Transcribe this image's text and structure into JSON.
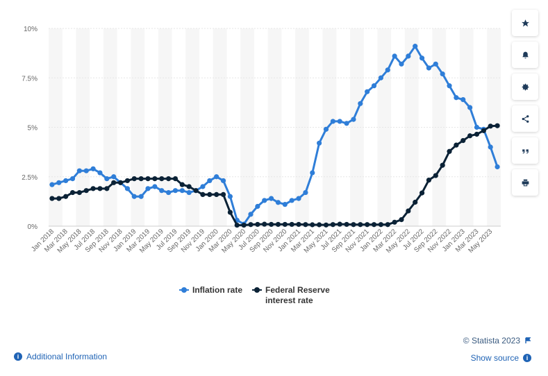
{
  "chart_data": {
    "type": "line",
    "categories": [
      "Jan 2018",
      "Feb 2018",
      "Mar 2018",
      "Apr 2018",
      "May 2018",
      "Jun 2018",
      "Jul 2018",
      "Aug 2018",
      "Sep 2018",
      "Oct 2018",
      "Nov 2018",
      "Dec 2018",
      "Jan 2019",
      "Feb 2019",
      "Mar 2019",
      "Apr 2019",
      "May 2019",
      "Jun 2019",
      "Jul 2019",
      "Aug 2019",
      "Sep 2019",
      "Oct 2019",
      "Nov 2019",
      "Dec 2019",
      "Jan 2020",
      "Feb 2020",
      "Mar 2020",
      "Apr 2020",
      "May 2020",
      "Jun 2020",
      "Jul 2020",
      "Aug 2020",
      "Sep 2020",
      "Oct 2020",
      "Nov 2020",
      "Dec 2020",
      "Jan 2021",
      "Feb 2021",
      "Mar 2021",
      "Apr 2021",
      "May 2021",
      "Jun 2021",
      "Jul 2021",
      "Aug 2021",
      "Sep 2021",
      "Oct 2021",
      "Nov 2021",
      "Dec 2021",
      "Jan 2022",
      "Feb 2022",
      "Mar 2022",
      "Apr 2022",
      "May 2022",
      "Jun 2022",
      "Jul 2022",
      "Aug 2022",
      "Sep 2022",
      "Oct 2022",
      "Nov 2022",
      "Dec 2022",
      "Jan 2023",
      "Feb 2023",
      "Mar 2023",
      "Apr 2023",
      "May 2023",
      "Jun 2023"
    ],
    "tick_labels": [
      "Jan 2018",
      "Mar 2018",
      "May 2018",
      "Jul 2018",
      "Sep 2018",
      "Nov 2018",
      "Jan 2019",
      "Mar 2019",
      "May 2019",
      "Jul 2019",
      "Sep 2019",
      "Nov 2019",
      "Jan 2020",
      "Mar 2020",
      "May 2020",
      "Jul 2020",
      "Sep 2020",
      "Nov 2020",
      "Jan 2021",
      "Mar 2021",
      "May 2021",
      "Jul 2021",
      "Sep 2021",
      "Nov 2021",
      "Jan 2022",
      "Mar 2022",
      "May 2022",
      "Jul 2022",
      "Sep 2022",
      "Nov 2022",
      "Jan 2023",
      "Mar 2023",
      "May 2023"
    ],
    "y_ticks": [
      {
        "value": 0,
        "label": "0%"
      },
      {
        "value": 2.5,
        "label": "2.5%"
      },
      {
        "value": 5,
        "label": "5%"
      },
      {
        "value": 7.5,
        "label": "7.5%"
      },
      {
        "value": 10,
        "label": "10%"
      }
    ],
    "ylim": [
      0,
      10
    ],
    "series": [
      {
        "name": "Inflation rate",
        "color": "#2f7ed8",
        "values": [
          2.1,
          2.2,
          2.3,
          2.4,
          2.8,
          2.8,
          2.9,
          2.7,
          2.4,
          2.5,
          2.2,
          1.9,
          1.5,
          1.5,
          1.9,
          2.0,
          1.8,
          1.7,
          1.8,
          1.8,
          1.7,
          1.8,
          2.0,
          2.3,
          2.5,
          2.3,
          1.5,
          0.3,
          0.1,
          0.6,
          1.0,
          1.3,
          1.4,
          1.2,
          1.1,
          1.3,
          1.4,
          1.7,
          2.7,
          4.2,
          4.9,
          5.3,
          5.3,
          5.2,
          5.4,
          6.2,
          6.8,
          7.1,
          7.5,
          7.9,
          8.6,
          8.2,
          8.6,
          9.1,
          8.5,
          8.0,
          8.2,
          7.7,
          7.1,
          6.5,
          6.4,
          6.0,
          5.0,
          4.9,
          4.0,
          3.0
        ]
      },
      {
        "name": "Federal Reserve interest rate",
        "color": "#0b2236",
        "values": [
          1.4,
          1.4,
          1.5,
          1.7,
          1.7,
          1.8,
          1.9,
          1.9,
          1.9,
          2.2,
          2.2,
          2.3,
          2.4,
          2.4,
          2.4,
          2.4,
          2.4,
          2.4,
          2.4,
          2.1,
          2.0,
          1.8,
          1.6,
          1.6,
          1.6,
          1.6,
          0.7,
          0.05,
          0.05,
          0.08,
          0.09,
          0.1,
          0.09,
          0.09,
          0.09,
          0.09,
          0.09,
          0.08,
          0.07,
          0.07,
          0.06,
          0.08,
          0.1,
          0.09,
          0.08,
          0.08,
          0.08,
          0.08,
          0.08,
          0.08,
          0.2,
          0.33,
          0.77,
          1.21,
          1.68,
          2.33,
          2.56,
          3.08,
          3.78,
          4.1,
          4.33,
          4.57,
          4.65,
          4.83,
          5.06,
          5.08
        ]
      }
    ],
    "legend": [
      "Inflation rate",
      "Federal Reserve interest rate"
    ],
    "legend_position": "bottom-center",
    "grid": true
  },
  "footer": {
    "credit": "© Statista 2023",
    "show_source": "Show source",
    "additional_info": "Additional Information"
  },
  "sidebar": {
    "icons": [
      "star-icon",
      "bell-icon",
      "gear-icon",
      "share-icon",
      "quote-icon",
      "print-icon"
    ]
  }
}
